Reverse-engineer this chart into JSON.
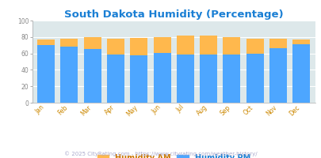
{
  "title": "South Dakota Humidity (Percentage)",
  "months": [
    "Jan",
    "Feb",
    "Mar",
    "Apr",
    "May",
    "Jun",
    "Jul",
    "Aug",
    "Sep",
    "Oct",
    "Nov",
    "Dec"
  ],
  "humidity_pm": [
    70,
    68,
    65,
    59,
    58,
    61,
    59,
    59,
    59,
    60,
    66,
    71
  ],
  "humidity_am_total": [
    77,
    78,
    80,
    78,
    79,
    80,
    82,
    82,
    80,
    78,
    78,
    77
  ],
  "color_pm": "#4da6ff",
  "color_am": "#ffb84d",
  "plot_bg": "#dde8ea",
  "title_color": "#1a7fd4",
  "legend_label_am_color": "#cc7700",
  "legend_label_pm_color": "#1a7fd4",
  "footer_color": "#aaaacc",
  "footer_text": "© 2025 CityRating.com - https://www.cityrating.com/weather-history/",
  "ylim": [
    0,
    100
  ],
  "yticks": [
    0,
    20,
    40,
    60,
    80,
    100
  ],
  "bar_width": 0.75,
  "title_fontsize": 9.5,
  "legend_fontsize": 7,
  "tick_fontsize": 5.5,
  "footer_fontsize": 5,
  "ytick_color": "#888888",
  "xtick_color": "#cc8800",
  "grid_color": "#ffffff",
  "spine_color": "#aaaaaa"
}
